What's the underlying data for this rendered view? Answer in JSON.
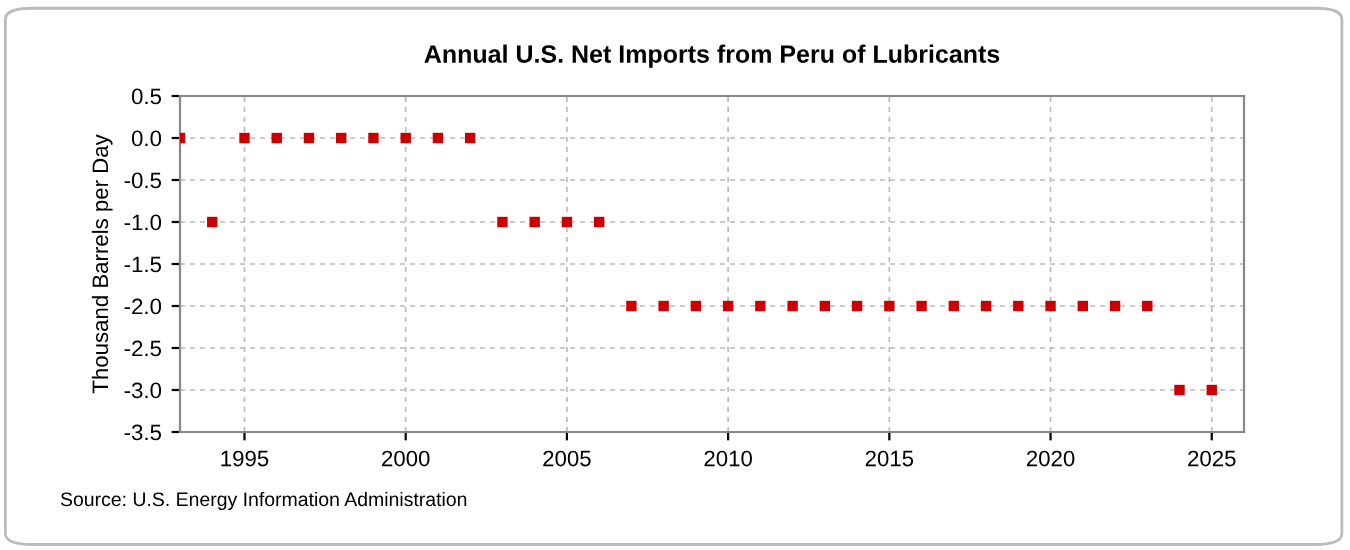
{
  "chart_data": {
    "type": "scatter",
    "title": "Annual U.S. Net Imports from Peru of Lubricants",
    "ylabel": "Thousand Barrels per Day",
    "x": [
      1993,
      1994,
      1995,
      1996,
      1997,
      1998,
      1999,
      2000,
      2001,
      2002,
      2003,
      2004,
      2005,
      2006,
      2007,
      2008,
      2009,
      2010,
      2011,
      2012,
      2013,
      2014,
      2015,
      2016,
      2017,
      2018,
      2019,
      2020,
      2021,
      2022,
      2023,
      2024,
      2025
    ],
    "series": [
      {
        "color": "#cc0000",
        "values": [
          0,
          -1,
          0,
          0,
          0,
          0,
          0,
          0,
          0,
          0,
          -1,
          -1,
          -1,
          -1,
          -2,
          -2,
          -2,
          -2,
          -2,
          -2,
          -2,
          -2,
          -2,
          -2,
          -2,
          -2,
          -2,
          -2,
          -2,
          -2,
          -2,
          -3,
          -3
        ]
      }
    ],
    "marker": "square",
    "grid": true,
    "xlim": [
      1993,
      2026
    ],
    "xticks": [
      1995,
      2000,
      2005,
      2010,
      2015,
      2020,
      2025
    ],
    "ylim": [
      -3.5,
      0.5
    ],
    "yticks": [
      {
        "value": -3.5,
        "label": "-3.5"
      },
      {
        "value": -3.0,
        "label": "-3.0"
      },
      {
        "value": -2.5,
        "label": "-2.5"
      },
      {
        "value": -2.0,
        "label": "-2.0"
      },
      {
        "value": -1.5,
        "label": "-1.5"
      },
      {
        "value": -1.0,
        "label": "-1.0"
      },
      {
        "value": -0.5,
        "label": "-0.5"
      },
      {
        "value": 0.0,
        "label": "0.0"
      },
      {
        "value": 0.5,
        "label": "0.5"
      }
    ],
    "annotations": [
      "Source: U.S. Energy Information Administration"
    ]
  }
}
